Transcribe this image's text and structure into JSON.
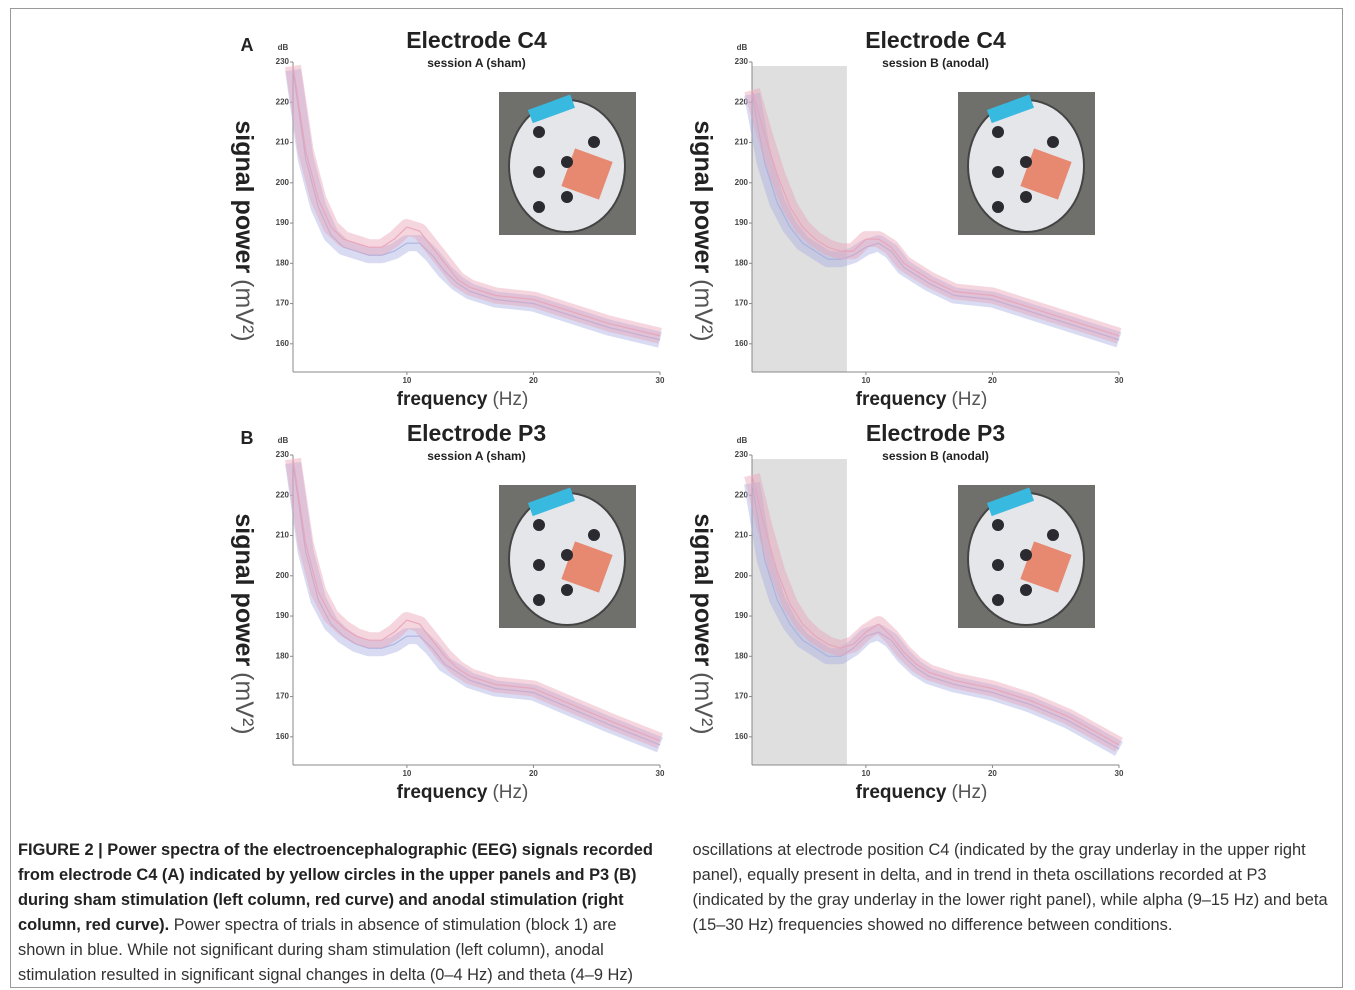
{
  "panel_letters": [
    "A",
    "B"
  ],
  "chart_data": [
    {
      "type": "line",
      "title": "Electrode C4",
      "subtitle": "session A (sham)",
      "y_unit": "dB",
      "ylabel": "signal power",
      "ylabel_unit": "(mV²)",
      "xlabel": "frequency",
      "xlabel_unit": "(Hz)",
      "xlim": [
        1,
        30
      ],
      "xticks": [
        10,
        20,
        30
      ],
      "ylim": [
        153,
        230
      ],
      "yticks": [
        160,
        170,
        180,
        190,
        200,
        210,
        220,
        230
      ],
      "x": [
        1,
        2,
        3,
        4,
        5,
        6,
        7,
        8,
        9,
        10,
        11,
        12,
        13,
        14,
        15,
        17,
        20,
        23,
        26,
        30
      ],
      "series": [
        {
          "color": "#a9b0e0",
          "values": [
            228,
            206,
            194,
            187,
            184,
            183,
            182,
            182,
            183,
            185,
            185,
            182,
            178,
            175,
            173,
            171,
            170,
            167,
            164,
            161
          ]
        },
        {
          "color": "#e9a3b8",
          "values": [
            229,
            208,
            196,
            189,
            186,
            185,
            184,
            184,
            186,
            189,
            188,
            184,
            180,
            176,
            174,
            172,
            171,
            168,
            165,
            162
          ]
        }
      ]
    },
    {
      "type": "line",
      "title": "Electrode C4",
      "subtitle": "session B (anodal)",
      "y_unit": "dB",
      "ylabel": "signal power",
      "ylabel_unit": "(mV²)",
      "xlabel": "frequency",
      "xlabel_unit": "(Hz)",
      "xlim": [
        1,
        30
      ],
      "xticks": [
        10,
        20,
        30
      ],
      "ylim": [
        153,
        230
      ],
      "yticks": [
        160,
        170,
        180,
        190,
        200,
        210,
        220,
        230
      ],
      "highlight_x": [
        1,
        8.5
      ],
      "x": [
        1,
        2,
        3,
        4,
        5,
        6,
        7,
        8,
        9,
        10,
        11,
        12,
        13,
        14,
        15,
        17,
        20,
        23,
        26,
        30
      ],
      "series": [
        {
          "color": "#a9b0e0",
          "values": [
            222,
            205,
            195,
            189,
            185,
            183,
            181,
            181,
            182,
            184,
            185,
            183,
            179,
            177,
            175,
            172,
            171,
            168,
            165,
            161
          ]
        },
        {
          "color": "#e9a3b8",
          "values": [
            223,
            212,
            202,
            194,
            189,
            186,
            184,
            183,
            183,
            186,
            186,
            184,
            180,
            178,
            176,
            173,
            172,
            169,
            166,
            162
          ]
        }
      ]
    },
    {
      "type": "line",
      "title": "Electrode P3",
      "subtitle": "session A (sham)",
      "y_unit": "dB",
      "ylabel": "signal power",
      "ylabel_unit": "(mV²)",
      "xlabel": "frequency",
      "xlabel_unit": "(Hz)",
      "xlim": [
        1,
        30
      ],
      "xticks": [
        10,
        20,
        30
      ],
      "ylim": [
        153,
        230
      ],
      "yticks": [
        160,
        170,
        180,
        190,
        200,
        210,
        220,
        230
      ],
      "x": [
        1,
        2,
        3,
        4,
        5,
        6,
        7,
        8,
        9,
        10,
        11,
        12,
        13,
        14,
        15,
        17,
        20,
        23,
        26,
        30
      ],
      "series": [
        {
          "color": "#a9b0e0",
          "values": [
            228,
            206,
            194,
            188,
            185,
            183,
            182,
            182,
            183,
            185,
            185,
            182,
            178,
            176,
            174,
            172,
            171,
            167,
            163,
            158
          ]
        },
        {
          "color": "#e9a3b8",
          "values": [
            229,
            208,
            196,
            190,
            187,
            185,
            184,
            184,
            186,
            189,
            188,
            184,
            180,
            177,
            175,
            173,
            172,
            168,
            164,
            159
          ]
        }
      ]
    },
    {
      "type": "line",
      "title": "Electrode P3",
      "subtitle": "session B (anodal)",
      "y_unit": "dB",
      "ylabel": "signal power",
      "ylabel_unit": "(mV²)",
      "xlabel": "frequency",
      "xlabel_unit": "(Hz)",
      "xlim": [
        1,
        30
      ],
      "xticks": [
        10,
        20,
        30
      ],
      "ylim": [
        153,
        230
      ],
      "yticks": [
        160,
        170,
        180,
        190,
        200,
        210,
        220,
        230
      ],
      "highlight_x": [
        1,
        8.5
      ],
      "x": [
        1,
        2,
        3,
        4,
        5,
        6,
        7,
        8,
        9,
        10,
        11,
        12,
        13,
        14,
        15,
        17,
        20,
        23,
        26,
        30
      ],
      "series": [
        {
          "color": "#a9b0e0",
          "values": [
            223,
            204,
            194,
            188,
            184,
            182,
            180,
            180,
            182,
            185,
            186,
            184,
            180,
            177,
            175,
            173,
            171,
            168,
            164,
            157
          ]
        },
        {
          "color": "#e9a3b8",
          "values": [
            225,
            212,
            201,
            193,
            188,
            185,
            183,
            182,
            183,
            186,
            188,
            185,
            181,
            178,
            176,
            174,
            172,
            169,
            165,
            158
          ]
        }
      ]
    }
  ],
  "caption": {
    "bold": "FIGURE 2 | Power spectra of the electroencephalographic (EEG) signals recorded from electrode C4 (A) indicated by yellow circles in the upper panels and P3 (B) during sham stimulation (left column, red curve) and anodal stimulation (right column, red curve).",
    "text": "Power spectra of trials in absence of stimulation (block 1) are shown in blue. While not significant during sham stimulation (left column), anodal stimulation resulted in significant signal changes in delta (0–4 Hz) and theta (4–9 Hz) oscillations at electrode position C4 (indicated by the gray underlay in the upper right panel), equally present in delta, and in trend in theta oscillations recorded at P3 (indicated by the gray underlay in the lower right panel), while alpha (9–15 Hz) and beta (15–30 Hz) frequencies showed no difference between conditions."
  }
}
